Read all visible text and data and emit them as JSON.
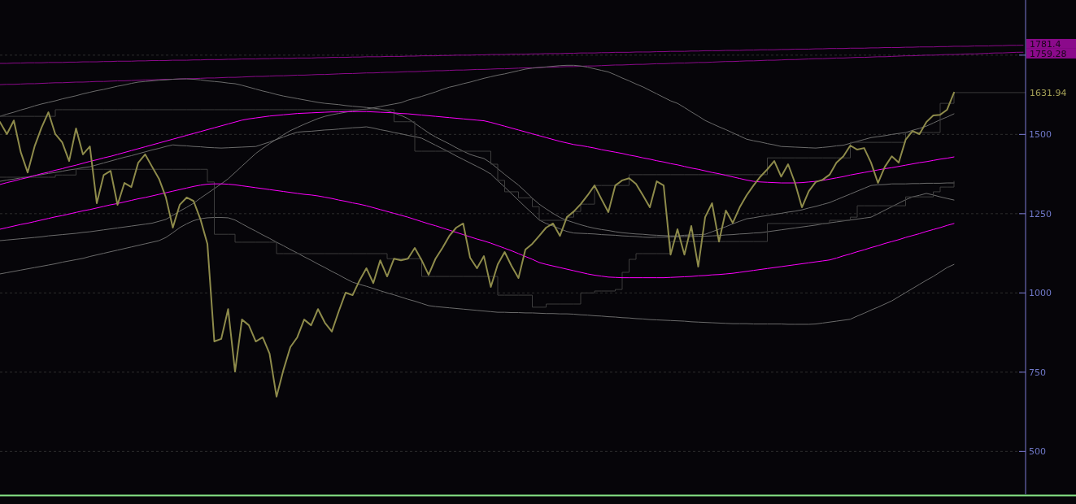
{
  "chart_data": {
    "type": "line",
    "categories": [
      null,
      null,
      null,
      null,
      null,
      null,
      null,
      null,
      null,
      null,
      null,
      null,
      null,
      null,
      null,
      null,
      null,
      null,
      null,
      null,
      null,
      null,
      null,
      null,
      null,
      null,
      null,
      null,
      null,
      null,
      null,
      null,
      null,
      null,
      null,
      null,
      null,
      null,
      null,
      null,
      null,
      null,
      null,
      null,
      null,
      null,
      null,
      null,
      null,
      null,
      null,
      null,
      null,
      null,
      null,
      null,
      null,
      null,
      null,
      null,
      null,
      null,
      null,
      null,
      null,
      null,
      null,
      null,
      null,
      null,
      null,
      null,
      null,
      null,
      null,
      null,
      null,
      null,
      null,
      null,
      null,
      null,
      null,
      null,
      null,
      null,
      null,
      null,
      null,
      null,
      null,
      null,
      null,
      null,
      null,
      null,
      null,
      null,
      null,
      null,
      null,
      null,
      null,
      null,
      null,
      null,
      null,
      null,
      null,
      null,
      null,
      null,
      null,
      null,
      null,
      null,
      null,
      null,
      null,
      null,
      null,
      null,
      null,
      null,
      null,
      null,
      null,
      null,
      null,
      null,
      null,
      null,
      null,
      null,
      null,
      null,
      null,
      null,
      null,
      null,
      null,
      null,
      null,
      null,
      null,
      null,
      null,
      null,
      null
    ],
    "ylim": [
      365,
      1924
    ],
    "yticks": [
      500,
      750,
      1000,
      1250,
      1500,
      {
        "value": 1750,
        "label": null
      }
    ],
    "grid": "y",
    "tick_labels": "y",
    "series": [
      {
        "color": "#8b0a8b",
        "values": [
          1724,
          1724,
          1725,
          1725,
          1726,
          1726,
          1726,
          1727,
          1727,
          1727,
          1728,
          1728,
          1729,
          1729,
          1729,
          1730,
          1730,
          1731,
          1731,
          1731,
          1732,
          1732,
          1733,
          1733,
          1733,
          1734,
          1734,
          1734,
          1735,
          1735,
          1736,
          1736,
          1736,
          1737,
          1737,
          1738,
          1738,
          1738,
          1739,
          1739,
          1740,
          1740,
          1740,
          1741,
          1741,
          1741,
          1742,
          1742,
          1743,
          1743,
          1743,
          1744,
          1744,
          1745,
          1745,
          1745,
          1746,
          1746,
          1746,
          1747,
          1747,
          1748,
          1748,
          1748,
          1749,
          1749,
          1750,
          1750,
          1750,
          1751,
          1751,
          1752,
          1752,
          1752,
          1753,
          1753,
          1753,
          1754,
          1754,
          1755,
          1755,
          1755,
          1756,
          1756,
          1757,
          1757,
          1757,
          1758,
          1758,
          1759,
          1759,
          1759,
          1760,
          1760,
          1760,
          1761,
          1761,
          1762,
          1762,
          1762,
          1763,
          1763,
          1764,
          1764,
          1764,
          1765,
          1765,
          1765,
          1766,
          1766,
          1767,
          1767,
          1767,
          1768,
          1768,
          1769,
          1769,
          1769,
          1770,
          1770,
          1771,
          1771,
          1771,
          1772,
          1772,
          1772,
          1773,
          1773,
          1774,
          1774,
          1774,
          1775,
          1775,
          1776,
          1776,
          1776,
          1777,
          1777,
          1778,
          1778,
          1778,
          1779,
          1779,
          1779,
          1780,
          1780,
          1781,
          1781,
          1781.4
        ],
        "value_labels": [
          null,
          null,
          null,
          null,
          null,
          null,
          null,
          null,
          null,
          null,
          null,
          null,
          null,
          null,
          null,
          null,
          null,
          null,
          null,
          null,
          null,
          null,
          null,
          null,
          null,
          null,
          null,
          null,
          null,
          null,
          null,
          null,
          null,
          null,
          null,
          null,
          null,
          null,
          null,
          null,
          null,
          null,
          null,
          null,
          null,
          null,
          null,
          null,
          null,
          null,
          null,
          null,
          null,
          null,
          null,
          null,
          null,
          null,
          null,
          null,
          null,
          null,
          null,
          null,
          null,
          null,
          null,
          null,
          null,
          null,
          null,
          null,
          null,
          null,
          null,
          null,
          null,
          null,
          null,
          null,
          null,
          null,
          null,
          null,
          null,
          null,
          null,
          null,
          null,
          null,
          null,
          null,
          null,
          null,
          null,
          null,
          null,
          null,
          null,
          null,
          null,
          null,
          null,
          null,
          null,
          null,
          null,
          null,
          null,
          null,
          null,
          null,
          null,
          null,
          null,
          null,
          null,
          null,
          null,
          null,
          null,
          null,
          null,
          null,
          null,
          null,
          null,
          null,
          null,
          null,
          null,
          null,
          null,
          null,
          null,
          null,
          null,
          null,
          null,
          null,
          null,
          null,
          null,
          null,
          null,
          null,
          null,
          null,
          "1781.4"
        ]
      },
      {
        "color": "#8b0a8b",
        "values": [
          1657,
          1658,
          1658,
          1659,
          1660,
          1660,
          1661,
          1662,
          1663,
          1663,
          1664,
          1665,
          1665,
          1666,
          1667,
          1667,
          1668,
          1669,
          1669,
          1670,
          1671,
          1672,
          1672,
          1673,
          1674,
          1674,
          1675,
          1676,
          1676,
          1677,
          1678,
          1678,
          1679,
          1680,
          1680,
          1681,
          1682,
          1683,
          1683,
          1684,
          1685,
          1685,
          1686,
          1687,
          1687,
          1688,
          1689,
          1689,
          1690,
          1691,
          1692,
          1692,
          1693,
          1694,
          1694,
          1695,
          1696,
          1696,
          1697,
          1698,
          1698,
          1699,
          1700,
          1701,
          1701,
          1702,
          1703,
          1703,
          1704,
          1705,
          1705,
          1706,
          1707,
          1707,
          1708,
          1709,
          1710,
          1710,
          1711,
          1712,
          1712,
          1713,
          1714,
          1714,
          1715,
          1716,
          1716,
          1717,
          1718,
          1719,
          1719,
          1720,
          1721,
          1721,
          1722,
          1723,
          1723,
          1724,
          1725,
          1725,
          1726,
          1727,
          1727,
          1728,
          1729,
          1730,
          1730,
          1731,
          1732,
          1732,
          1733,
          1734,
          1734,
          1735,
          1736,
          1736,
          1737,
          1738,
          1739,
          1739,
          1740,
          1741,
          1741,
          1742,
          1743,
          1743,
          1744,
          1745,
          1745,
          1746,
          1747,
          1748,
          1748,
          1749,
          1750,
          1750,
          1751,
          1752,
          1752,
          1753,
          1754,
          1754,
          1755,
          1756,
          1757,
          1757,
          1758,
          1759,
          1759.28
        ],
        "value_labels": [
          null,
          null,
          null,
          null,
          null,
          null,
          null,
          null,
          null,
          null,
          null,
          null,
          null,
          null,
          null,
          null,
          null,
          null,
          null,
          null,
          null,
          null,
          null,
          null,
          null,
          null,
          null,
          null,
          null,
          null,
          null,
          null,
          null,
          null,
          null,
          null,
          null,
          null,
          null,
          null,
          null,
          null,
          null,
          null,
          null,
          null,
          null,
          null,
          null,
          null,
          null,
          null,
          null,
          null,
          null,
          null,
          null,
          null,
          null,
          null,
          null,
          null,
          null,
          null,
          null,
          null,
          null,
          null,
          null,
          null,
          null,
          null,
          null,
          null,
          null,
          null,
          null,
          null,
          null,
          null,
          null,
          null,
          null,
          null,
          null,
          null,
          null,
          null,
          null,
          null,
          null,
          null,
          null,
          null,
          null,
          null,
          null,
          null,
          null,
          null,
          null,
          null,
          null,
          null,
          null,
          null,
          null,
          null,
          null,
          null,
          null,
          null,
          null,
          null,
          null,
          null,
          null,
          null,
          null,
          null,
          null,
          null,
          null,
          null,
          null,
          null,
          null,
          null,
          null,
          null,
          null,
          null,
          null,
          null,
          null,
          null,
          null,
          null,
          null,
          null,
          null,
          null,
          null,
          null,
          null,
          null,
          null,
          null,
          "1759.28"
        ]
      },
      {
        "color": "#6b6b6b",
        "values": [
          1557,
          1564,
          1570,
          1577,
          1583,
          1590,
          1596,
          1601,
          1606,
          1612,
          1617,
          1622,
          1628,
          1633,
          1638,
          1642,
          1647,
          1652,
          1656,
          1661,
          1665,
          1667,
          1669,
          1671,
          1672,
          1674,
          1675,
          1675,
          1674,
          1672,
          1669,
          1667,
          1665,
          1662,
          1660,
          1655,
          1649,
          1643,
          1637,
          1632,
          1626,
          1621,
          1617,
          1613,
          1609,
          1605,
          1601,
          1598,
          1596,
          1594,
          1591,
          1589,
          1587,
          1585,
          1583,
          1580,
          1575,
          1567,
          1560,
          1550,
          1535,
          1520,
          1505,
          1492,
          1481,
          1470,
          1458,
          1447,
          1437,
          1430,
          1424,
          1410,
          1392,
          1374,
          1357,
          1340,
          1320,
          1299,
          1280,
          1265,
          1251,
          1238,
          1229,
          1222,
          1215,
          1209,
          1204,
          1200,
          1197,
          1193,
          1190,
          1188,
          1186,
          1185,
          1183,
          1182,
          1181,
          1180,
          1180,
          1182,
          1183,
          1184,
          1185,
          1193,
          1201,
          1209,
          1218,
          1226,
          1234,
          1237,
          1241,
          1244,
          1248,
          1251,
          1255,
          1258,
          1262,
          1268,
          1273,
          1279,
          1285,
          1294,
          1303,
          1312,
          1321,
          1330,
          1339,
          1341,
          1342,
          1344,
          1344,
          1344,
          1345,
          1345,
          1346,
          1346,
          1346,
          1347,
          1347,
          null,
          null,
          null,
          null,
          null,
          null,
          null,
          null,
          null,
          null
        ]
      },
      {
        "color": "#6b6b6b",
        "values": [
          1165,
          1167,
          1169,
          1171,
          1173,
          1175,
          1177,
          1180,
          1182,
          1184,
          1186,
          1188,
          1191,
          1193,
          1196,
          1199,
          1202,
          1205,
          1208,
          1211,
          1214,
          1217,
          1220,
          1226,
          1232,
          1245,
          1258,
          1270,
          1283,
          1299,
          1314,
          1329,
          1344,
          1360,
          1380,
          1400,
          1420,
          1440,
          1456,
          1471,
          1485,
          1499,
          1512,
          1522,
          1532,
          1541,
          1550,
          1557,
          1562,
          1566,
          1570,
          1574,
          1578,
          1580,
          1584,
          1588,
          1592,
          1596,
          1600,
          1608,
          1614,
          1620,
          1627,
          1634,
          1642,
          1649,
          1654,
          1660,
          1665,
          1671,
          1677,
          1682,
          1687,
          1691,
          1696,
          1701,
          1706,
          1709,
          1711,
          1713,
          1715,
          1717,
          1718,
          1718,
          1716,
          1712,
          1707,
          1702,
          1697,
          1688,
          1678,
          1669,
          1659,
          1650,
          1639,
          1628,
          1617,
          1606,
          1598,
          1585,
          1571,
          1558,
          1544,
          1534,
          1524,
          1515,
          1505,
          1495,
          1485,
          1480,
          1476,
          1471,
          1467,
          1462,
          1461,
          1460,
          1459,
          1458,
          1457,
          1459,
          1461,
          1464,
          1466,
          1472,
          1478,
          1484,
          1490,
          1493,
          1496,
          1500,
          1503,
          1506,
          1513,
          1519,
          1526,
          1536,
          1546,
          1555,
          1565,
          null,
          null,
          null,
          null,
          null,
          null,
          null,
          null,
          null,
          null
        ]
      },
      {
        "color": "#6b6b6b",
        "values": [
          1352,
          1356,
          1359,
          1363,
          1366,
          1370,
          1373,
          1377,
          1380,
          1384,
          1388,
          1391,
          1395,
          1398,
          1404,
          1410,
          1416,
          1422,
          1428,
          1433,
          1439,
          1445,
          1451,
          1456,
          1462,
          1467,
          1465,
          1464,
          1462,
          1461,
          1459,
          1458,
          1457,
          1458,
          1459,
          1460,
          1461,
          1462,
          1469,
          1476,
          1484,
          1492,
          1500,
          1507,
          1509,
          1510,
          1512,
          1514,
          1515,
          1517,
          1519,
          1521,
          1522,
          1524,
          1520,
          1515,
          1511,
          1506,
          1502,
          1497,
          1493,
          1488,
          1477,
          1466,
          1455,
          1444,
          1432,
          1421,
          1410,
          1399,
          1388,
          1375,
          1354,
          1334,
          1313,
          1292,
          1271,
          1251,
          1230,
          1219,
          1211,
          1202,
          1194,
          1189,
          1188,
          1187,
          1186,
          1184,
          1183,
          1182,
          1180,
          1179,
          1178,
          1176,
          1175,
          1176,
          1176,
          1177,
          1177,
          1178,
          1178,
          1179,
          1179,
          1180,
          1181,
          1183,
          1184,
          1186,
          1187,
          1189,
          1190,
          1193,
          1196,
          1199,
          1202,
          1205,
          1208,
          1211,
          1214,
          1218,
          1221,
          1224,
          1227,
          1230,
          1233,
          1236,
          1239,
          1250,
          1261,
          1272,
          1283,
          1294,
          1303,
          1308,
          1314,
          1309,
          1303,
          1298,
          1293,
          null,
          null,
          null,
          null,
          null,
          null,
          null,
          null,
          null,
          null
        ]
      },
      {
        "color": "#6b6b6b",
        "values": [
          1060,
          1064,
          1068,
          1072,
          1076,
          1080,
          1084,
          1088,
          1092,
          1097,
          1101,
          1105,
          1109,
          1115,
          1120,
          1125,
          1130,
          1135,
          1140,
          1145,
          1150,
          1155,
          1160,
          1165,
          1175,
          1190,
          1206,
          1218,
          1228,
          1234,
          1237,
          1238,
          1238,
          1237,
          1230,
          1218,
          1206,
          1195,
          1183,
          1172,
          1160,
          1149,
          1137,
          1126,
          1114,
          1103,
          1091,
          1080,
          1068,
          1057,
          1045,
          1034,
          1027,
          1021,
          1014,
          1007,
          1000,
          994,
          987,
          980,
          974,
          967,
          960,
          957,
          955,
          953,
          951,
          949,
          947,
          945,
          943,
          941,
          939,
          939,
          938,
          938,
          937,
          937,
          936,
          935,
          935,
          934,
          934,
          933,
          931,
          930,
          928,
          927,
          925,
          924,
          922,
          921,
          919,
          918,
          916,
          915,
          914,
          913,
          912,
          911,
          909,
          908,
          907,
          906,
          905,
          904,
          903,
          903,
          903,
          902,
          902,
          902,
          902,
          902,
          901,
          901,
          901,
          901,
          902,
          905,
          908,
          911,
          914,
          917,
          927,
          936,
          946,
          955,
          965,
          975,
          988,
          1001,
          1014,
          1027,
          1040,
          1052,
          1066,
          1080,
          1090,
          null,
          null,
          null,
          null,
          null,
          null,
          null,
          null,
          null,
          null
        ]
      },
      {
        "type": "step",
        "color": "#3d3d3d",
        "values": [
          1557,
          1557,
          1557,
          1557,
          1557,
          1557,
          1557,
          1557,
          1578,
          1578,
          1578,
          1578,
          1578,
          1578,
          1578,
          1578,
          1578,
          1578,
          1578,
          1578,
          1578,
          1578,
          1578,
          1578,
          1578,
          1578,
          1578,
          1578,
          1578,
          1578,
          1578,
          1578,
          1578,
          1578,
          1578,
          1578,
          1578,
          1578,
          1578,
          1578,
          1578,
          1578,
          1578,
          1578,
          1578,
          1578,
          1578,
          1578,
          1578,
          1578,
          1578,
          1578,
          1578,
          1578,
          1578,
          1578,
          1578,
          1540,
          1540,
          1540,
          1447,
          1447,
          1447,
          1447,
          1447,
          1447,
          1447,
          1447,
          1447,
          1447,
          1447,
          1406,
          1355,
          1319,
          1319,
          1300,
          1300,
          1272,
          1229,
          1229,
          1229,
          1229,
          1239,
          1257,
          1280,
          1280,
          1339,
          1339,
          1339,
          1339,
          1339,
          1373,
          1373,
          1373,
          1373,
          1373,
          1373,
          1373,
          1373,
          1373,
          1373,
          1373,
          1373,
          1373,
          1373,
          1373,
          1373,
          1373,
          1373,
          1373,
          1373,
          1426,
          1426,
          1426,
          1426,
          1426,
          1426,
          1426,
          1426,
          1426,
          1426,
          1426,
          1426,
          1475,
          1475,
          1475,
          1475,
          1475,
          1475,
          1475,
          1475,
          1506,
          1506,
          1506,
          1506,
          1506,
          1598,
          1598,
          1627,
          null,
          null,
          null,
          null,
          null,
          null,
          null,
          null,
          null,
          null
        ]
      },
      {
        "type": "step",
        "color": "#3d3d3d",
        "values": [
          1365,
          1365,
          1365,
          1365,
          1365,
          1365,
          1365,
          1365,
          1372,
          1372,
          1372,
          1390,
          1390,
          1390,
          1390,
          1390,
          1390,
          1390,
          1390,
          1390,
          1390,
          1390,
          1390,
          1390,
          1390,
          1390,
          1390,
          1390,
          1390,
          1390,
          1350,
          1185,
          1185,
          1185,
          1160,
          1160,
          1160,
          1160,
          1160,
          1160,
          1124,
          1124,
          1124,
          1124,
          1124,
          1124,
          1124,
          1124,
          1124,
          1124,
          1124,
          1124,
          1124,
          1124,
          1124,
          1124,
          1108,
          1108,
          1108,
          1108,
          1108,
          1052,
          1052,
          1052,
          1052,
          1052,
          1052,
          1052,
          1052,
          1052,
          1052,
          1052,
          993,
          993,
          993,
          993,
          993,
          955,
          955,
          965,
          965,
          965,
          965,
          965,
          1000,
          1000,
          1006,
          1006,
          1006,
          1011,
          1065,
          1106,
          1124,
          1124,
          1124,
          1124,
          1124,
          1162,
          1162,
          1162,
          1162,
          1162,
          1162,
          1162,
          1162,
          1162,
          1162,
          1162,
          1162,
          1162,
          1162,
          1219,
          1219,
          1219,
          1219,
          1219,
          1219,
          1219,
          1219,
          1219,
          1229,
          1229,
          1229,
          1239,
          1275,
          1275,
          1275,
          1275,
          1275,
          1275,
          1275,
          1303,
          1303,
          1303,
          1303,
          1319,
          1334,
          1334,
          1352,
          null,
          null,
          null,
          null,
          null,
          null,
          null,
          null,
          null,
          null
        ]
      },
      {
        "color": "#ff00ff",
        "values": [
          1342,
          1348,
          1353,
          1359,
          1364,
          1370,
          1376,
          1381,
          1387,
          1392,
          1398,
          1403,
          1409,
          1415,
          1420,
          1426,
          1431,
          1437,
          1443,
          1449,
          1455,
          1461,
          1467,
          1473,
          1479,
          1485,
          1491,
          1497,
          1503,
          1509,
          1515,
          1521,
          1527,
          1533,
          1539,
          1545,
          1549,
          1552,
          1555,
          1558,
          1560,
          1562,
          1564,
          1566,
          1567,
          1568,
          1569,
          1570,
          1571,
          1571,
          1572,
          1572,
          1572,
          1572,
          1571,
          1570,
          1569,
          1568,
          1566,
          1565,
          1563,
          1561,
          1559,
          1557,
          1555,
          1553,
          1551,
          1549,
          1547,
          1545,
          1543,
          1538,
          1532,
          1526,
          1520,
          1514,
          1508,
          1502,
          1496,
          1490,
          1484,
          1478,
          1473,
          1468,
          1465,
          1461,
          1457,
          1452,
          1448,
          1444,
          1440,
          1435,
          1431,
          1426,
          1422,
          1417,
          1413,
          1408,
          1404,
          1399,
          1394,
          1390,
          1385,
          1380,
          1376,
          1371,
          1366,
          1361,
          1356,
          1352,
          1350,
          1349,
          1348,
          1347,
          1347,
          1347,
          1348,
          1350,
          1352,
          1355,
          1359,
          1363,
          1367,
          1372,
          1376,
          1380,
          1384,
          1388,
          1392,
          1395,
          1399,
          1403,
          1407,
          1411,
          1414,
          1418,
          1422,
          1425,
          1429,
          null,
          null,
          null,
          null,
          null,
          null,
          null,
          null,
          null,
          null
        ]
      },
      {
        "color": "#ff00ff",
        "values": [
          1201,
          1206,
          1211,
          1216,
          1220,
          1225,
          1230,
          1235,
          1240,
          1244,
          1249,
          1254,
          1259,
          1263,
          1268,
          1273,
          1278,
          1282,
          1287,
          1292,
          1297,
          1301,
          1306,
          1311,
          1316,
          1321,
          1326,
          1331,
          1336,
          1340,
          1343,
          1344,
          1344,
          1343,
          1341,
          1338,
          1335,
          1332,
          1329,
          1326,
          1323,
          1320,
          1317,
          1314,
          1311,
          1309,
          1306,
          1302,
          1298,
          1293,
          1289,
          1284,
          1280,
          1275,
          1269,
          1263,
          1257,
          1251,
          1245,
          1239,
          1232,
          1225,
          1218,
          1212,
          1205,
          1198,
          1191,
          1184,
          1177,
          1170,
          1164,
          1157,
          1149,
          1141,
          1133,
          1124,
          1115,
          1106,
          1096,
          1090,
          1085,
          1080,
          1075,
          1070,
          1065,
          1060,
          1056,
          1053,
          1050,
          1049,
          1048,
          1048,
          1048,
          1048,
          1048,
          1048,
          1048,
          1049,
          1050,
          1051,
          1052,
          1054,
          1055,
          1057,
          1058,
          1060,
          1062,
          1065,
          1068,
          1071,
          1074,
          1077,
          1080,
          1083,
          1086,
          1089,
          1092,
          1095,
          1098,
          1101,
          1104,
          1110,
          1117,
          1123,
          1130,
          1136,
          1143,
          1149,
          1156,
          1162,
          1168,
          1175,
          1181,
          1187,
          1194,
          1200,
          1206,
          1213,
          1219,
          null,
          null,
          null,
          null,
          null,
          null,
          null,
          null,
          null,
          null
        ]
      },
      {
        "color": "#8e8b4b",
        "values": [
          1539,
          1501,
          1544,
          1444,
          1380,
          1462,
          1521,
          1570,
          1501,
          1475,
          1416,
          1519,
          1437,
          1462,
          1283,
          1372,
          1385,
          1278,
          1347,
          1334,
          1411,
          1437,
          1398,
          1360,
          1301,
          1206,
          1278,
          1301,
          1290,
          1232,
          1155,
          847,
          855,
          949,
          752,
          916,
          898,
          847,
          860,
          808,
          673,
          757,
          829,
          860,
          916,
          898,
          949,
          906,
          878,
          942,
          1001,
          993,
          1039,
          1078,
          1031,
          1103,
          1052,
          1108,
          1103,
          1108,
          1142,
          1103,
          1057,
          1108,
          1142,
          1180,
          1206,
          1219,
          1111,
          1078,
          1116,
          1019,
          1090,
          1129,
          1085,
          1047,
          1137,
          1155,
          1180,
          1206,
          1219,
          1180,
          1239,
          1257,
          1280,
          1308,
          1339,
          1296,
          1255,
          1339,
          1355,
          1362,
          1344,
          1308,
          1270,
          1352,
          1339,
          1121,
          1201,
          1121,
          1211,
          1083,
          1239,
          1283,
          1162,
          1260,
          1221,
          1270,
          1308,
          1339,
          1367,
          1390,
          1416,
          1367,
          1406,
          1347,
          1270,
          1321,
          1350,
          1357,
          1373,
          1411,
          1431,
          1465,
          1452,
          1457,
          1411,
          1347,
          1398,
          1431,
          1411,
          1483,
          1511,
          1501,
          1539,
          1560,
          1562,
          1578,
          1631.94,
          null,
          null,
          null,
          null,
          null,
          null,
          null,
          null,
          null,
          null
        ],
        "value_labels": [
          null,
          null,
          null,
          null,
          null,
          null,
          null,
          null,
          null,
          null,
          null,
          null,
          null,
          null,
          null,
          null,
          null,
          null,
          null,
          null,
          null,
          null,
          null,
          null,
          null,
          null,
          null,
          null,
          null,
          null,
          null,
          null,
          null,
          null,
          null,
          null,
          null,
          null,
          null,
          null,
          null,
          null,
          null,
          null,
          null,
          null,
          null,
          null,
          null,
          null,
          null,
          null,
          null,
          null,
          null,
          null,
          null,
          null,
          null,
          null,
          null,
          null,
          null,
          null,
          null,
          null,
          null,
          null,
          null,
          null,
          null,
          null,
          null,
          null,
          null,
          null,
          null,
          null,
          null,
          null,
          null,
          null,
          null,
          null,
          null,
          null,
          null,
          null,
          null,
          null,
          null,
          null,
          null,
          null,
          null,
          null,
          null,
          null,
          null,
          null,
          null,
          null,
          null,
          null,
          null,
          null,
          null,
          null,
          null,
          null,
          null,
          null,
          null,
          null,
          null,
          null,
          null,
          null,
          null,
          null,
          null,
          null,
          null,
          null,
          null,
          null,
          null,
          null,
          null,
          null,
          null,
          null,
          null,
          null,
          null,
          null,
          null,
          null,
          "1631.94",
          null,
          null,
          null,
          null,
          null,
          null,
          null,
          null,
          null,
          null
        ]
      }
    ]
  }
}
